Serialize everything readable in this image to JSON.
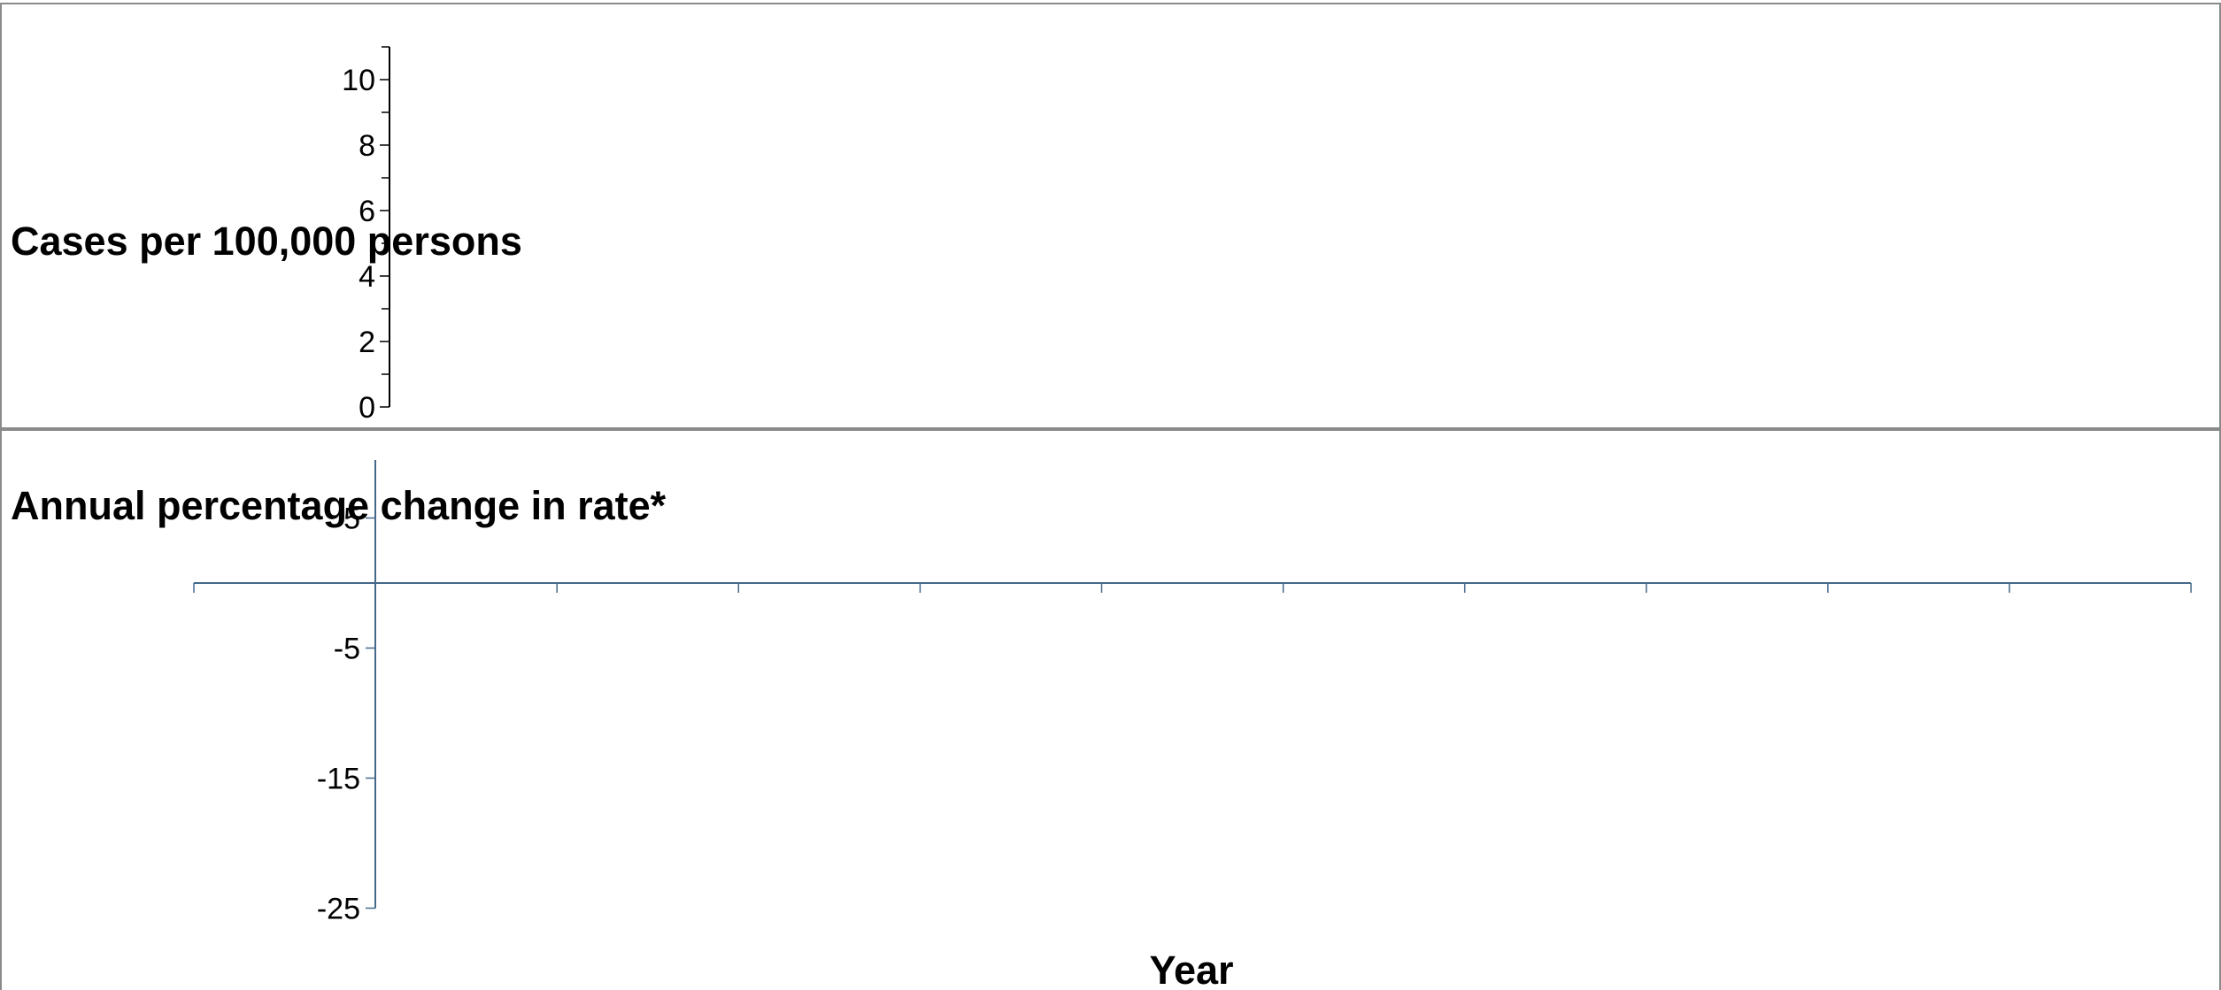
{
  "chart_data": [
    {
      "type": "line",
      "title": "",
      "xlabel": "",
      "ylabel": "Cases per 100,000 persons",
      "ylim": [
        0,
        11
      ],
      "yticks": [
        0,
        2,
        4,
        6,
        8,
        10
      ],
      "series": [],
      "grid": false,
      "axis_color": "#000000"
    },
    {
      "type": "line",
      "title": "",
      "xlabel": "Year",
      "ylabel": "Annual percentage change in rate*",
      "ylim": [
        -25,
        5
      ],
      "yticks": [
        5,
        -5,
        -15,
        -25
      ],
      "x_category_count": 11,
      "series": [],
      "grid": false,
      "axis_color": "#44688A"
    }
  ]
}
